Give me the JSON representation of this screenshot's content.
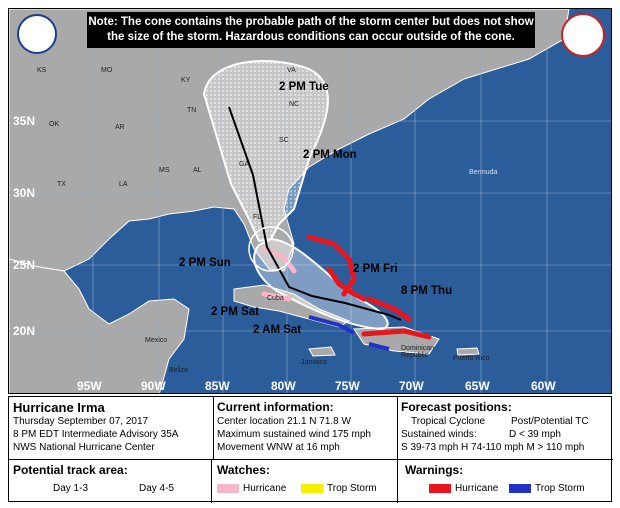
{
  "note": "Note: The cone contains the probable path of the storm center but does not show the size of the storm. Hazardous conditions can occur outside of the cone.",
  "lat_labels": [
    "35N",
    "30N",
    "25N",
    "20N"
  ],
  "lon_labels": [
    "95W",
    "90W",
    "85W",
    "80W",
    "75W",
    "70W",
    "65W",
    "60W"
  ],
  "states": [
    "KS",
    "MO",
    "KY",
    "VA",
    "OK",
    "AR",
    "TN",
    "NC",
    "SC",
    "GA",
    "TX",
    "LA",
    "MS",
    "AL",
    "FL"
  ],
  "countries": [
    "Mexico",
    "Belize",
    "Cuba",
    "Jamaica",
    "Dominican Republic",
    "Puerto Rico"
  ],
  "ocean": [
    "Bermuda"
  ],
  "track_labels": [
    "2 PM Tue",
    "2 PM Mon",
    "2 PM Sun",
    "2 PM Fri",
    "8 PM Thu",
    "2 PM Sat",
    "2 AM Sat"
  ],
  "storm": {
    "name": "Hurricane Irma",
    "date": "Thursday September 07, 2017",
    "advisory": "8 PM EDT Intermediate Advisory 35A",
    "center": "NWS National Hurricane Center"
  },
  "current": {
    "title": "Current information:",
    "location": "Center location 21.1 N 71.8 W",
    "wind": "Maximum sustained wind 175 mph",
    "movement": "Movement WNW at 16 mph"
  },
  "forecast": {
    "title": "Forecast positions:",
    "tc": "Tropical Cyclone",
    "post": "Post/Potential TC",
    "winds_label": "Sustained winds:",
    "d": "D < 39 mph",
    "shm": "S 39-73 mph  H 74-110 mph  M > 110 mph"
  },
  "potential": {
    "title": "Potential track area:",
    "d13": "Day 1-3",
    "d45": "Day 4-5"
  },
  "watches": {
    "title": "Watches:",
    "hurricane": "Hurricane",
    "trop": "Trop Storm"
  },
  "warnings": {
    "title": "Warnings:",
    "hurricane": "Hurricane",
    "trop": "Trop Storm"
  },
  "colors": {
    "ocean": "#2b5d9a",
    "land": "#a9a9a9",
    "hurr_warning": "#e8141e",
    "ts_warning": "#2232c8",
    "hurr_watch": "#f7b7c8",
    "ts_watch": "#f5f000"
  }
}
